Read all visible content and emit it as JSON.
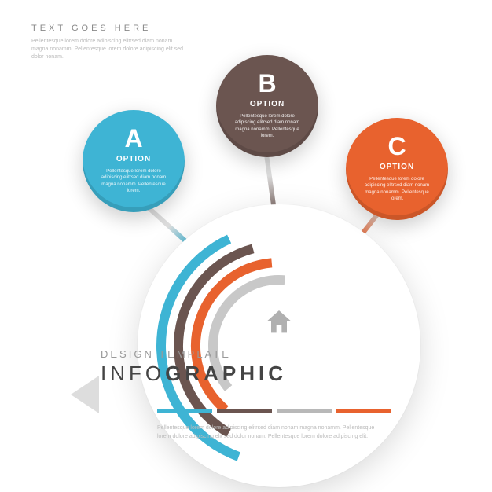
{
  "header": {
    "title": "TEXT GOES HERE",
    "body": "Pellentesque lorem dolore adipiscing elitrsed diam nonam magna nonamm. Pellentesque lorem dolore adipiscing elit sed dolor nonam."
  },
  "colors": {
    "option_a": "#3eb4d4",
    "option_b": "#6b5550",
    "option_c": "#e8622e",
    "grey": "#b8b8b8",
    "background": "#ffffff"
  },
  "options": [
    {
      "id": "a",
      "letter": "A",
      "label": "OPTION",
      "color": "#3eb4d4",
      "body": "Pellentesque lorem dolore adipiscing elitrsed diam nonam magna nonamm. Pellentesque lorem."
    },
    {
      "id": "b",
      "letter": "B",
      "label": "OPTION",
      "color": "#6b5550",
      "body": "Pellentesque lorem dolore adipiscing elitrsed diam nonam magna nonamm. Pellentesque lorem."
    },
    {
      "id": "c",
      "letter": "C",
      "label": "OPTION",
      "color": "#e8622e",
      "body": "Pellentesque lorem dolore adipiscing elitrsed diam nonam magna nonamm. Pellentesque lorem."
    }
  ],
  "arcs": {
    "rings": [
      {
        "radius": 150,
        "width": 12,
        "color": "#3eb4d4",
        "start": 200,
        "end": 335
      },
      {
        "radius": 128,
        "width": 12,
        "color": "#6b5550",
        "start": 210,
        "end": 345
      },
      {
        "radius": 106,
        "width": 12,
        "color": "#e8622e",
        "start": 220,
        "end": 355
      },
      {
        "radius": 84,
        "width": 12,
        "color": "#c8c8c8",
        "start": 230,
        "end": 365
      }
    ]
  },
  "bottom": {
    "subtitle": "DESIGN TEMPLATE",
    "main_light": "INFO",
    "main_bold": "GRAPHIC",
    "body": "Pellentesque lorem dolore adipiscing elitrsed diam nonam magna nonamm. Pellentesque lorem dolore adipiscing elit sed dolor nonam. Pellentesque lorem dolore adipiscing elit."
  },
  "legend_colors": [
    "#3eb4d4",
    "#6b5550",
    "#b8b8b8",
    "#e8622e"
  ],
  "icon": "home",
  "typography": {
    "header_title_size": 11,
    "option_letter_size": 32,
    "option_label_size": 10,
    "bottom_main_size": 26
  }
}
